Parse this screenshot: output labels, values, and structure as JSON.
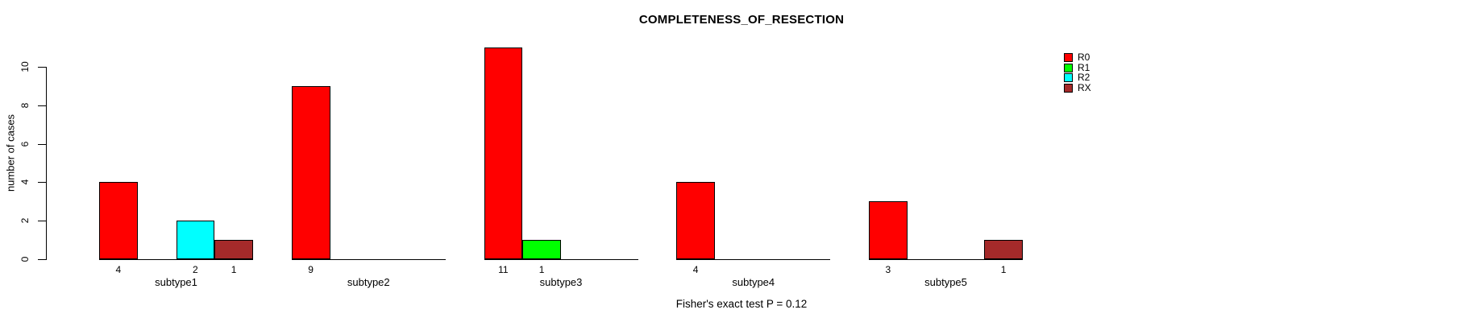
{
  "chart_data": {
    "type": "bar",
    "title": "COMPLETENESS_OF_RESECTION",
    "xlabel": "",
    "ylabel": "number of cases",
    "categories": [
      "subtype1",
      "subtype2",
      "subtype3",
      "subtype4",
      "subtype5"
    ],
    "series": [
      {
        "name": "R0",
        "color": "#FF0000",
        "values": [
          4,
          9,
          11,
          4,
          3
        ]
      },
      {
        "name": "R1",
        "color": "#00FF00",
        "values": [
          0,
          0,
          1,
          0,
          0
        ]
      },
      {
        "name": "R2",
        "color": "#00FFFF",
        "values": [
          2,
          0,
          0,
          0,
          0
        ]
      },
      {
        "name": "RX",
        "color": "#A52A2A",
        "values": [
          1,
          0,
          0,
          0,
          1
        ]
      }
    ],
    "yticks": [
      0,
      2,
      4,
      6,
      8,
      10
    ],
    "ylim": [
      0,
      10
    ],
    "grid": false,
    "legend_position": "right",
    "bar_value_labels_nonzero_only": true,
    "annotation": "Fisher's exact test P = 0.12"
  }
}
